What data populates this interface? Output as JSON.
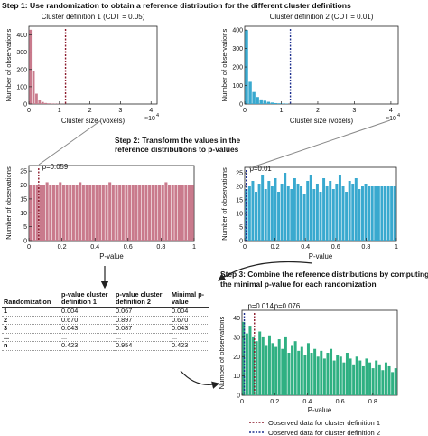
{
  "step1": "Step 1: Use randomization to obtain a reference distribution for the different cluster definitions",
  "step2": "Step 2: Transform the values in the reference distributions to p-values",
  "step3": "Step 3: Combine the reference distributions by computing the minimal p-value for each randomization",
  "colors": {
    "pink": "#c97a8c",
    "blue": "#39a9cf",
    "green": "#2fb082",
    "red_line": "#8b1a2b",
    "blue_line": "#1c2f8f"
  },
  "chart_data": [
    {
      "type": "bar",
      "title": "Cluster definition 1 (CDT = 0.05)",
      "xlabel": "Cluster size (voxels)",
      "ylabel": "Number of observations",
      "x_exponent": "×10",
      "x_exponent_power": "4",
      "xticks": [
        "0",
        "1",
        "2",
        "3",
        "4"
      ],
      "yticks": [
        "0",
        "100",
        "200",
        "300",
        "400"
      ],
      "xlim": [
        0,
        4.2
      ],
      "ylim": [
        0,
        450
      ],
      "bin_width": 0.1,
      "values": [
        430,
        190,
        60,
        25,
        12,
        6,
        4,
        3,
        2,
        2,
        1,
        1
      ],
      "observed_x": 1.2,
      "color": "#c97a8c",
      "line_color": "#8b1a2b"
    },
    {
      "type": "bar",
      "title": "Cluster definition 2 (CDT = 0.01)",
      "xlabel": "Cluster size (voxels)",
      "ylabel": "Number of observations",
      "x_exponent": "×10",
      "x_exponent_power": "4",
      "xticks": [
        "0",
        "1",
        "2",
        "3",
        "4"
      ],
      "yticks": [
        "0",
        "100",
        "200",
        "300",
        "400"
      ],
      "xlim": [
        0,
        4.2
      ],
      "ylim": [
        0,
        420
      ],
      "bin_width": 0.1,
      "values": [
        400,
        120,
        65,
        38,
        25,
        18,
        12,
        8,
        5,
        4,
        3,
        2
      ],
      "observed_x": 1.25,
      "color": "#39a9cf",
      "line_color": "#1c2f8f"
    },
    {
      "type": "bar",
      "xlabel": "P-value",
      "ylabel": "Number of observations",
      "xticks": [
        "0",
        "0.2",
        "0.4",
        "0.6",
        "0.8",
        "1"
      ],
      "yticks": [
        "0",
        "5",
        "10",
        "15",
        "20",
        "25"
      ],
      "xlim": [
        0,
        1
      ],
      "ylim": [
        0,
        27
      ],
      "values": [
        20,
        20,
        20,
        20,
        20,
        21,
        20,
        20,
        20,
        21,
        20,
        20,
        20,
        20,
        20,
        21,
        20,
        20,
        20,
        20,
        20,
        20,
        20,
        20,
        21,
        20,
        20,
        20,
        20,
        20,
        20,
        20,
        20,
        20,
        20,
        20,
        20,
        20,
        20,
        20,
        20,
        21,
        20,
        20,
        20,
        20,
        20,
        20,
        20,
        20
      ],
      "observed_x": 0.059,
      "annotation": "p=0.059",
      "color": "#c97a8c",
      "line_color": "#8b1a2b"
    },
    {
      "type": "bar",
      "xlabel": "P-value",
      "ylabel": "Number of observations",
      "xticks": [
        "0",
        "0.2",
        "0.4",
        "0.6",
        "0.8",
        "1"
      ],
      "yticks": [
        "0",
        "5",
        "10",
        "15",
        "20",
        "25"
      ],
      "xlim": [
        0,
        1
      ],
      "ylim": [
        0,
        27
      ],
      "values": [
        19,
        20,
        22,
        18,
        21,
        24,
        19,
        22,
        20,
        23,
        18,
        21,
        25,
        20,
        19,
        23,
        21,
        20,
        17,
        22,
        24,
        19,
        21,
        18,
        23,
        20,
        22,
        19,
        21,
        24,
        20,
        18,
        22,
        21,
        23,
        19,
        20,
        21,
        20,
        20,
        20,
        20,
        20,
        20,
        20,
        20,
        20
      ],
      "observed_x": 0.01,
      "annotation": "p=0.01",
      "color": "#39a9cf",
      "line_color": "#1c2f8f"
    },
    {
      "type": "bar",
      "xlabel": "P-value",
      "ylabel": "Number of observations",
      "xticks": [
        "0",
        "0.2",
        "0.4",
        "0.6",
        "0.8"
      ],
      "yticks": [
        "0",
        "10",
        "20",
        "30",
        "40"
      ],
      "xlim": [
        0,
        0.95
      ],
      "ylim": [
        0,
        44
      ],
      "values": [
        38,
        32,
        36,
        30,
        28,
        33,
        30,
        26,
        31,
        27,
        25,
        29,
        24,
        30,
        22,
        26,
        28,
        23,
        25,
        21,
        27,
        22,
        24,
        20,
        23,
        19,
        22,
        24,
        18,
        21,
        20,
        17,
        22,
        19,
        16,
        20,
        18,
        15,
        19,
        17,
        14,
        18,
        16,
        13,
        17,
        15,
        12,
        14
      ],
      "observed": [
        {
          "x": 0.014,
          "annotation": "p=0.014",
          "line_color": "#1c2f8f"
        },
        {
          "x": 0.076,
          "annotation": "p=0.076",
          "line_color": "#8b1a2b"
        }
      ],
      "color": "#2fb082"
    }
  ],
  "table": {
    "headers": [
      "Randomization",
      "p-value cluster definition 1",
      "p-value cluster definition 2",
      "Minimal p-value"
    ],
    "rows": [
      [
        "1",
        "0.004",
        "0.067",
        "0.004"
      ],
      [
        "2",
        "0.670",
        "0.897",
        "0.670"
      ],
      [
        "3",
        "0.043",
        "0.087",
        "0.043"
      ],
      [
        "...",
        "...",
        "...",
        "..."
      ],
      [
        "n",
        "0.423",
        "0.954",
        "0.423"
      ]
    ]
  },
  "legend": [
    {
      "label": "Observed data for cluster definition 1",
      "color": "#8b1a2b"
    },
    {
      "label": "Observed data for cluster definition 2",
      "color": "#1c2f8f"
    }
  ]
}
